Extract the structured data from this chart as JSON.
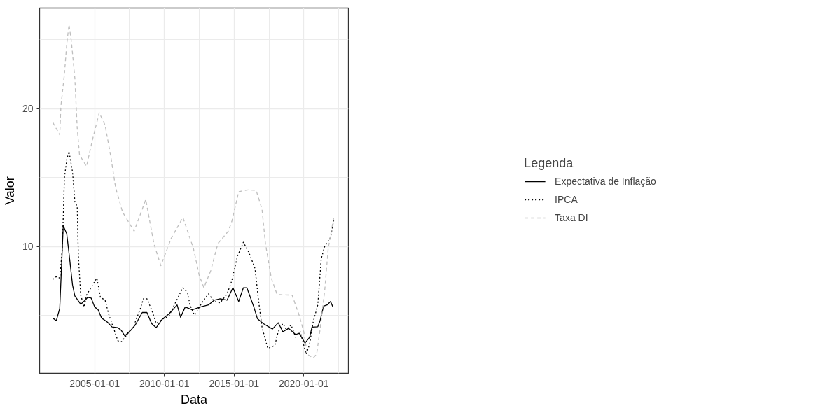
{
  "chart_data": {
    "type": "line",
    "xlabel": "Data",
    "ylabel": "Valor",
    "legend_title": "Legenda",
    "legend": "right",
    "grid": true,
    "xlim": [
      "2001-01-19",
      "2023-03-14"
    ],
    "ylim": [
      0.78,
      27.3
    ],
    "xticks": [
      "2005-01-01",
      "2010-01-01",
      "2015-01-01",
      "2020-01-01"
    ],
    "yticks": [
      10,
      20
    ],
    "series": [
      {
        "name": "Expectativa de Inflação",
        "color": "#000000",
        "line_style": "solid",
        "x": [
          "2002-01",
          "2002-04",
          "2002-07",
          "2002-08",
          "2002-10",
          "2003-01",
          "2003-03",
          "2003-06",
          "2003-08",
          "2004-01",
          "2004-05",
          "2004-07",
          "2004-10",
          "2005-01",
          "2005-04",
          "2005-07",
          "2005-12",
          "2006-04",
          "2006-09",
          "2006-12",
          "2007-03",
          "2007-08",
          "2007-12",
          "2008-06",
          "2008-10",
          "2009-02",
          "2009-06",
          "2009-11",
          "2010-05",
          "2010-12",
          "2011-03",
          "2011-07",
          "2012-01",
          "2012-08",
          "2013-03",
          "2013-08",
          "2014-01",
          "2014-07",
          "2014-12",
          "2015-05",
          "2015-09",
          "2015-12",
          "2016-06",
          "2016-09",
          "2017-02",
          "2017-10",
          "2018-03",
          "2018-07",
          "2018-12",
          "2019-06",
          "2019-09",
          "2020-02",
          "2020-06",
          "2020-08",
          "2021-01",
          "2021-03",
          "2021-06",
          "2021-09",
          "2021-12",
          "2022-02"
        ],
        "values": [
          4.8,
          4.6,
          5.5,
          7.5,
          11.5,
          10.9,
          9.5,
          7.2,
          6.4,
          5.8,
          6.1,
          6.3,
          6.25,
          5.6,
          5.4,
          4.8,
          4.5,
          4.15,
          4.1,
          3.9,
          3.5,
          3.9,
          4.3,
          5.2,
          5.2,
          4.4,
          4.1,
          4.7,
          5.1,
          5.75,
          4.85,
          5.6,
          5.4,
          5.6,
          5.75,
          6.1,
          6.2,
          6.1,
          7.0,
          6.0,
          7.0,
          7.0,
          5.6,
          4.76,
          4.4,
          4.0,
          4.46,
          3.8,
          4.05,
          3.6,
          3.7,
          2.98,
          3.4,
          4.14,
          4.17,
          4.6,
          5.66,
          5.75,
          6.0,
          5.6
        ]
      },
      {
        "name": "IPCA",
        "color": "#000000",
        "line_style": "dotted",
        "x": [
          "2002-01",
          "2002-04",
          "2002-07",
          "2002-09",
          "2002-10",
          "2002-11",
          "2003-01",
          "2003-03",
          "2003-06",
          "2003-08",
          "2003-10",
          "2003-11",
          "2004-01",
          "2004-04",
          "2004-06",
          "2004-11",
          "2005-03",
          "2005-06",
          "2005-10",
          "2006-01",
          "2006-05",
          "2006-09",
          "2006-12",
          "2007-05",
          "2007-11",
          "2008-04",
          "2008-07",
          "2008-10",
          "2009-02",
          "2009-06",
          "2009-11",
          "2010-05",
          "2010-11",
          "2011-05",
          "2011-09",
          "2011-11",
          "2012-03",
          "2012-10",
          "2013-03",
          "2013-08",
          "2014-01",
          "2014-07",
          "2014-11",
          "2015-04",
          "2015-09",
          "2016-02",
          "2016-07",
          "2016-10",
          "2017-01",
          "2017-06",
          "2017-12",
          "2018-03",
          "2018-07",
          "2018-10",
          "2019-02",
          "2019-06",
          "2019-10",
          "2020-03",
          "2020-06",
          "2020-09",
          "2021-01",
          "2021-04",
          "2021-07",
          "2021-12",
          "2022-03"
        ],
        "values": [
          7.6,
          7.8,
          7.7,
          9.7,
          12.1,
          15.0,
          16.3,
          16.9,
          15.4,
          13.25,
          12.9,
          9.3,
          6.46,
          5.6,
          6.46,
          7.17,
          7.7,
          6.3,
          6.1,
          5.1,
          4.14,
          3.15,
          3.07,
          3.6,
          4.3,
          5.4,
          6.2,
          6.2,
          5.4,
          4.4,
          4.7,
          4.94,
          6.0,
          7.0,
          6.64,
          5.75,
          5.0,
          6.0,
          6.55,
          6.0,
          5.9,
          6.55,
          7.5,
          9.3,
          10.3,
          9.5,
          8.4,
          6.1,
          4.14,
          2.6,
          2.8,
          3.8,
          4.4,
          3.96,
          4.3,
          3.4,
          3.8,
          2.17,
          2.9,
          4.5,
          5.75,
          9.1,
          10.0,
          10.66,
          12.0
        ]
      },
      {
        "name": "Taxa DI",
        "color": "#bebebe",
        "line_style": "dashed",
        "x": [
          "2002-01",
          "2002-07",
          "2002-08",
          "2002-11",
          "2003-01",
          "2003-03",
          "2003-05",
          "2003-08",
          "2003-10",
          "2003-12",
          "2004-06",
          "2004-11",
          "2005-05",
          "2005-10",
          "2006-03",
          "2006-07",
          "2007-01",
          "2007-11",
          "2008-09",
          "2009-04",
          "2009-10",
          "2010-07",
          "2011-05",
          "2012-02",
          "2012-07",
          "2012-11",
          "2013-05",
          "2013-11",
          "2014-08",
          "2014-11",
          "2015-05",
          "2016-01",
          "2016-08",
          "2017-01",
          "2017-04",
          "2017-09",
          "2018-02",
          "2019-03",
          "2019-09",
          "2020-01",
          "2020-04",
          "2020-09",
          "2020-12",
          "2021-03",
          "2021-07",
          "2021-10",
          "2022-03"
        ],
        "values": [
          19.0,
          18.1,
          20.2,
          22.5,
          24.7,
          26.1,
          24.9,
          22.2,
          18.6,
          16.65,
          15.8,
          17.7,
          19.7,
          18.8,
          16.5,
          14.3,
          12.5,
          11.1,
          13.4,
          10.2,
          8.6,
          10.6,
          12.1,
          9.85,
          7.9,
          7.0,
          8.25,
          10.2,
          11.1,
          11.8,
          13.97,
          14.1,
          14.06,
          12.7,
          10.2,
          7.7,
          6.5,
          6.46,
          5.0,
          3.78,
          2.17,
          1.9,
          2.17,
          3.96,
          6.8,
          9.85,
          12.2
        ]
      }
    ]
  }
}
